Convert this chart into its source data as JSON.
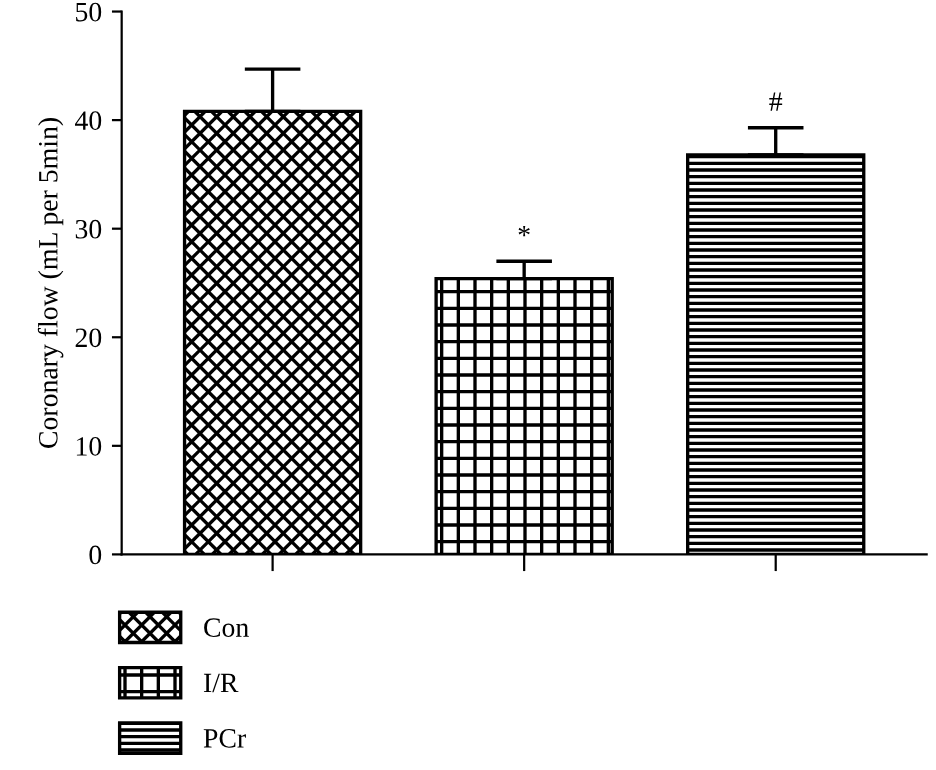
{
  "chart_data": {
    "type": "bar",
    "ylabel": "Coronary flow (mL per 5min)",
    "categories": [
      null,
      null,
      null
    ],
    "series": [
      {
        "name": "Con",
        "color": "#000000",
        "values": [
          40.8,
          null,
          null
        ],
        "errors": [
          [
            40.8,
            44.7
          ],
          null,
          null
        ]
      },
      {
        "name": "I/R",
        "color": "#000000",
        "values": [
          null,
          25.4,
          null
        ],
        "errors": [
          null,
          [
            25.4,
            27.0
          ],
          null
        ],
        "value_labels": [
          null,
          "*",
          null
        ]
      },
      {
        "name": "PCr",
        "color": "#000000",
        "values": [
          null,
          null,
          36.8
        ],
        "errors": [
          null,
          null,
          [
            36.8,
            39.3
          ]
        ],
        "value_labels": [
          null,
          null,
          "#"
        ]
      }
    ],
    "ylim": [
      0,
      50
    ],
    "yticks": [
      0,
      10,
      20,
      30,
      40,
      50
    ],
    "grid": false,
    "legend": "bottom left"
  }
}
